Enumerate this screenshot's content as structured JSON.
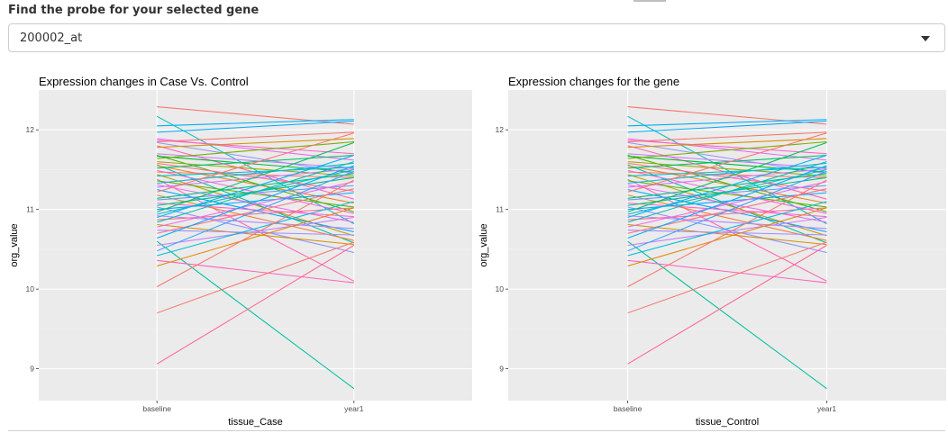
{
  "selector": {
    "label": "Find the probe for your selected gene",
    "selected": "200002_at",
    "icon": "caret-down-icon"
  },
  "chart_data": [
    {
      "type": "line",
      "title": "Expression changes in Case Vs. Control",
      "xlabel": "tissue_Case",
      "ylabel": "org_value",
      "categories": [
        "baseline",
        "year1"
      ],
      "ylim": [
        8.6,
        12.5
      ],
      "yticks": [
        9,
        10,
        11,
        12
      ],
      "grid": true,
      "legend": "none",
      "series": [
        {
          "values": [
            12.29,
            12.07
          ],
          "color": "#F8766D"
        },
        {
          "values": [
            12.17,
            10.82
          ],
          "color": "#00BFC4"
        },
        {
          "values": [
            12.05,
            12.13
          ],
          "color": "#00B0F6"
        },
        {
          "values": [
            11.97,
            12.11
          ],
          "color": "#00A9FF"
        },
        {
          "values": [
            11.89,
            11.62
          ],
          "color": "#E76BF3"
        },
        {
          "values": [
            11.87,
            11.7
          ],
          "color": "#FF61C3"
        },
        {
          "values": [
            11.85,
            11.97
          ],
          "color": "#F8766D"
        },
        {
          "values": [
            11.84,
            11.45
          ],
          "color": "#9590FF"
        },
        {
          "values": [
            11.8,
            11.13
          ],
          "color": "#FF62BC"
        },
        {
          "values": [
            11.78,
            11.89
          ],
          "color": "#D89000"
        },
        {
          "values": [
            11.7,
            11.52
          ],
          "color": "#C77CFF"
        },
        {
          "values": [
            11.68,
            10.97
          ],
          "color": "#39B600"
        },
        {
          "values": [
            11.67,
            11.47
          ],
          "color": "#00BA38"
        },
        {
          "values": [
            11.64,
            11.85
          ],
          "color": "#7CAE00"
        },
        {
          "values": [
            11.6,
            11.42
          ],
          "color": "#A3A500"
        },
        {
          "values": [
            11.58,
            11.23
          ],
          "color": "#FF6C91"
        },
        {
          "values": [
            11.56,
            10.58
          ],
          "color": "#00C19A"
        },
        {
          "values": [
            11.55,
            11.08
          ],
          "color": "#E7861B"
        },
        {
          "values": [
            11.52,
            11.68
          ],
          "color": "#00BE67"
        },
        {
          "values": [
            11.49,
            10.95
          ],
          "color": "#F564E3"
        },
        {
          "values": [
            11.47,
            11.4
          ],
          "color": "#F8766D"
        },
        {
          "values": [
            11.44,
            10.67
          ],
          "color": "#C49A00"
        },
        {
          "values": [
            11.42,
            11.53
          ],
          "color": "#00BFC4"
        },
        {
          "values": [
            11.38,
            10.1
          ],
          "color": "#FF64B0"
        },
        {
          "values": [
            11.36,
            11.03
          ],
          "color": "#53B400"
        },
        {
          "values": [
            11.33,
            11.58
          ],
          "color": "#00B9E3"
        },
        {
          "values": [
            11.31,
            10.84
          ],
          "color": "#E76BF3"
        },
        {
          "values": [
            11.28,
            11.51
          ],
          "color": "#DB72FB"
        },
        {
          "values": [
            11.25,
            10.72
          ],
          "color": "#00A5FF"
        },
        {
          "values": [
            11.22,
            11.96
          ],
          "color": "#F8766D"
        },
        {
          "values": [
            11.18,
            10.61
          ],
          "color": "#EA8331"
        },
        {
          "values": [
            11.14,
            11.45
          ],
          "color": "#00C08B"
        },
        {
          "values": [
            11.12,
            11.3
          ],
          "color": "#619CFF"
        },
        {
          "values": [
            11.08,
            10.91
          ],
          "color": "#FF61C3"
        },
        {
          "values": [
            11.05,
            11.4
          ],
          "color": "#00BF7D"
        },
        {
          "values": [
            11.03,
            10.46
          ],
          "color": "#8F91FF"
        },
        {
          "values": [
            11.0,
            11.21
          ],
          "color": "#00A9FF"
        },
        {
          "values": [
            10.97,
            11.84
          ],
          "color": "#00BD5C"
        },
        {
          "values": [
            10.94,
            11.5
          ],
          "color": "#00BFC4"
        },
        {
          "values": [
            10.92,
            10.76
          ],
          "color": "#B385FF"
        },
        {
          "values": [
            10.9,
            11.68
          ],
          "color": "#00B4EF"
        },
        {
          "values": [
            10.87,
            11.02
          ],
          "color": "#FF6A98"
        },
        {
          "values": [
            10.84,
            11.6
          ],
          "color": "#00C1A8"
        },
        {
          "values": [
            10.81,
            10.56
          ],
          "color": "#D39200"
        },
        {
          "values": [
            10.78,
            11.35
          ],
          "color": "#ED68ED"
        },
        {
          "values": [
            10.74,
            10.68
          ],
          "color": "#A58AFF"
        },
        {
          "values": [
            10.7,
            11.26
          ],
          "color": "#FC717F"
        },
        {
          "values": [
            10.64,
            11.55
          ],
          "color": "#00ACFC"
        },
        {
          "values": [
            10.6,
            8.75
          ],
          "color": "#00C19F"
        },
        {
          "values": [
            10.55,
            10.9
          ],
          "color": "#C77CFF"
        },
        {
          "values": [
            10.48,
            11.48
          ],
          "color": "#35A2FF"
        },
        {
          "values": [
            10.42,
            11.1
          ],
          "color": "#00BCD8"
        },
        {
          "values": [
            10.36,
            10.08
          ],
          "color": "#FF62BC"
        },
        {
          "values": [
            10.29,
            11.02
          ],
          "color": "#E58700"
        },
        {
          "values": [
            10.03,
            11.37
          ],
          "color": "#F8766D"
        },
        {
          "values": [
            9.7,
            10.59
          ],
          "color": "#F8766D"
        },
        {
          "values": [
            9.06,
            10.55
          ],
          "color": "#FF6692"
        }
      ]
    },
    {
      "type": "line",
      "title": "Expression changes for the gene",
      "xlabel": "tissue_Control",
      "ylabel": "org_value",
      "categories": [
        "baseline",
        "year1"
      ],
      "ylim": [
        8.6,
        12.5
      ],
      "yticks": [
        9,
        10,
        11,
        12
      ],
      "grid": true,
      "legend": "none",
      "series": [
        {
          "values": [
            12.29,
            12.07
          ],
          "color": "#F8766D"
        },
        {
          "values": [
            12.17,
            10.82
          ],
          "color": "#00BFC4"
        },
        {
          "values": [
            12.05,
            12.13
          ],
          "color": "#00B0F6"
        },
        {
          "values": [
            11.97,
            12.11
          ],
          "color": "#00A9FF"
        },
        {
          "values": [
            11.89,
            11.62
          ],
          "color": "#E76BF3"
        },
        {
          "values": [
            11.87,
            11.7
          ],
          "color": "#FF61C3"
        },
        {
          "values": [
            11.85,
            11.97
          ],
          "color": "#F8766D"
        },
        {
          "values": [
            11.84,
            11.45
          ],
          "color": "#9590FF"
        },
        {
          "values": [
            11.8,
            11.13
          ],
          "color": "#FF62BC"
        },
        {
          "values": [
            11.78,
            11.89
          ],
          "color": "#D89000"
        },
        {
          "values": [
            11.7,
            11.52
          ],
          "color": "#C77CFF"
        },
        {
          "values": [
            11.68,
            10.97
          ],
          "color": "#39B600"
        },
        {
          "values": [
            11.67,
            11.47
          ],
          "color": "#00BA38"
        },
        {
          "values": [
            11.64,
            11.85
          ],
          "color": "#7CAE00"
        },
        {
          "values": [
            11.6,
            11.42
          ],
          "color": "#A3A500"
        },
        {
          "values": [
            11.58,
            11.23
          ],
          "color": "#FF6C91"
        },
        {
          "values": [
            11.56,
            10.58
          ],
          "color": "#00C19A"
        },
        {
          "values": [
            11.55,
            11.08
          ],
          "color": "#E7861B"
        },
        {
          "values": [
            11.52,
            11.68
          ],
          "color": "#00BE67"
        },
        {
          "values": [
            11.49,
            10.95
          ],
          "color": "#F564E3"
        },
        {
          "values": [
            11.47,
            11.4
          ],
          "color": "#F8766D"
        },
        {
          "values": [
            11.44,
            10.67
          ],
          "color": "#C49A00"
        },
        {
          "values": [
            11.42,
            11.53
          ],
          "color": "#00BFC4"
        },
        {
          "values": [
            11.38,
            10.1
          ],
          "color": "#FF64B0"
        },
        {
          "values": [
            11.36,
            11.03
          ],
          "color": "#53B400"
        },
        {
          "values": [
            11.33,
            11.58
          ],
          "color": "#00B9E3"
        },
        {
          "values": [
            11.31,
            10.84
          ],
          "color": "#E76BF3"
        },
        {
          "values": [
            11.28,
            11.51
          ],
          "color": "#DB72FB"
        },
        {
          "values": [
            11.25,
            10.72
          ],
          "color": "#00A5FF"
        },
        {
          "values": [
            11.22,
            11.96
          ],
          "color": "#F8766D"
        },
        {
          "values": [
            11.18,
            10.61
          ],
          "color": "#EA8331"
        },
        {
          "values": [
            11.14,
            11.45
          ],
          "color": "#00C08B"
        },
        {
          "values": [
            11.12,
            11.3
          ],
          "color": "#619CFF"
        },
        {
          "values": [
            11.08,
            10.91
          ],
          "color": "#FF61C3"
        },
        {
          "values": [
            11.05,
            11.4
          ],
          "color": "#00BF7D"
        },
        {
          "values": [
            11.03,
            10.46
          ],
          "color": "#8F91FF"
        },
        {
          "values": [
            11.0,
            11.21
          ],
          "color": "#00A9FF"
        },
        {
          "values": [
            10.97,
            11.84
          ],
          "color": "#00BD5C"
        },
        {
          "values": [
            10.94,
            11.5
          ],
          "color": "#00BFC4"
        },
        {
          "values": [
            10.92,
            10.76
          ],
          "color": "#B385FF"
        },
        {
          "values": [
            10.9,
            11.68
          ],
          "color": "#00B4EF"
        },
        {
          "values": [
            10.87,
            11.02
          ],
          "color": "#FF6A98"
        },
        {
          "values": [
            10.84,
            11.6
          ],
          "color": "#00C1A8"
        },
        {
          "values": [
            10.81,
            10.56
          ],
          "color": "#D39200"
        },
        {
          "values": [
            10.78,
            11.35
          ],
          "color": "#ED68ED"
        },
        {
          "values": [
            10.74,
            10.68
          ],
          "color": "#A58AFF"
        },
        {
          "values": [
            10.7,
            11.26
          ],
          "color": "#FC717F"
        },
        {
          "values": [
            10.64,
            11.55
          ],
          "color": "#00ACFC"
        },
        {
          "values": [
            10.6,
            8.75
          ],
          "color": "#00C19F"
        },
        {
          "values": [
            10.55,
            10.9
          ],
          "color": "#C77CFF"
        },
        {
          "values": [
            10.48,
            11.48
          ],
          "color": "#35A2FF"
        },
        {
          "values": [
            10.42,
            11.1
          ],
          "color": "#00BCD8"
        },
        {
          "values": [
            10.36,
            10.08
          ],
          "color": "#FF62BC"
        },
        {
          "values": [
            10.29,
            11.02
          ],
          "color": "#E58700"
        },
        {
          "values": [
            10.03,
            11.37
          ],
          "color": "#F8766D"
        },
        {
          "values": [
            9.7,
            10.59
          ],
          "color": "#F8766D"
        },
        {
          "values": [
            9.06,
            10.55
          ],
          "color": "#FF6692"
        }
      ]
    }
  ]
}
